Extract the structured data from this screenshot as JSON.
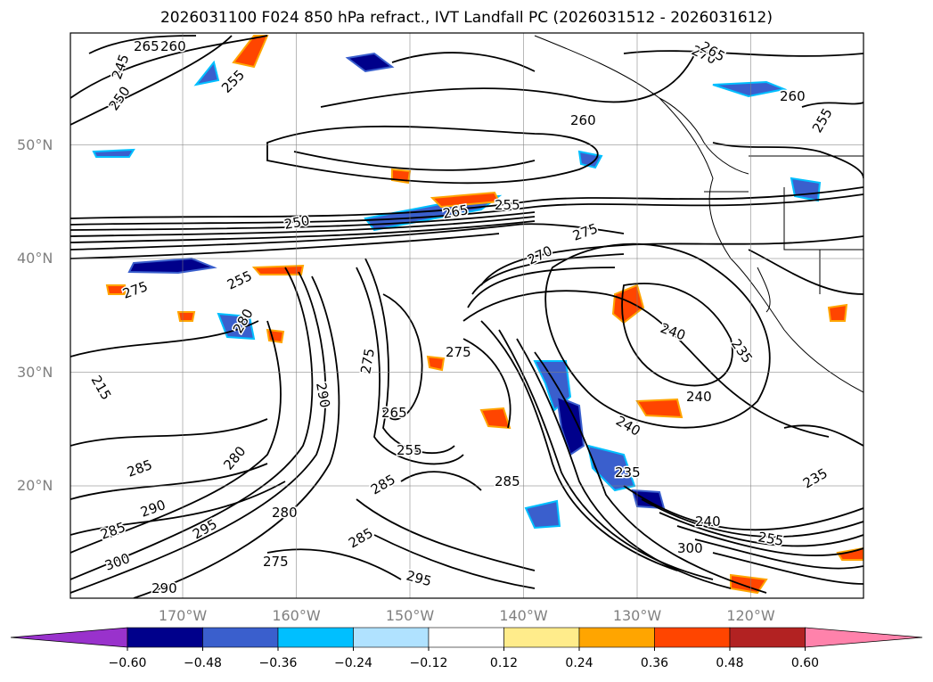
{
  "title": "2026031100 F024 850 hPa refract., IVT Landfall PC (2026031512 - 2026031612)",
  "map": {
    "lat_ticks": [
      {
        "label": "50°N",
        "lat": 50
      },
      {
        "label": "40°N",
        "lat": 40
      },
      {
        "label": "30°N",
        "lat": 30
      },
      {
        "label": "20°N",
        "lat": 20
      }
    ],
    "lon_ticks": [
      {
        "label": "170°W",
        "lon": -170
      },
      {
        "label": "160°W",
        "lon": -160
      },
      {
        "label": "150°W",
        "lon": -150
      },
      {
        "label": "140°W",
        "lon": -140
      },
      {
        "label": "130°W",
        "lon": -130
      },
      {
        "label": "120°W",
        "lon": -120
      }
    ],
    "contour_labels": [
      "265",
      "260",
      "245",
      "250",
      "255",
      "270",
      "265",
      "260",
      "255",
      "250",
      "260",
      "255",
      "280",
      "275",
      "265",
      "255",
      "275",
      "270",
      "275",
      "240",
      "235",
      "240",
      "240",
      "235",
      "215",
      "265",
      "290",
      "255",
      "275",
      "285",
      "280",
      "290",
      "285",
      "300",
      "280",
      "295",
      "275",
      "290",
      "285",
      "295",
      "300",
      "255",
      "235",
      "285",
      "240",
      "285"
    ],
    "colors": {
      "contour": "#000000",
      "land_outline": "#000000",
      "grid": "#808080"
    }
  },
  "colorbar": {
    "colors": [
      "#9932cc",
      "#00008b",
      "#3a5fcd",
      "#00bfff",
      "#b0e2ff",
      "#ffffff",
      "#ffec8b",
      "#ffa500",
      "#ff4500",
      "#b22222",
      "#ff82ab"
    ],
    "ticks": [
      "−0.60",
      "−0.48",
      "−0.36",
      "−0.24",
      "−0.12",
      "0.12",
      "0.24",
      "0.36",
      "0.48",
      "0.60"
    ]
  }
}
